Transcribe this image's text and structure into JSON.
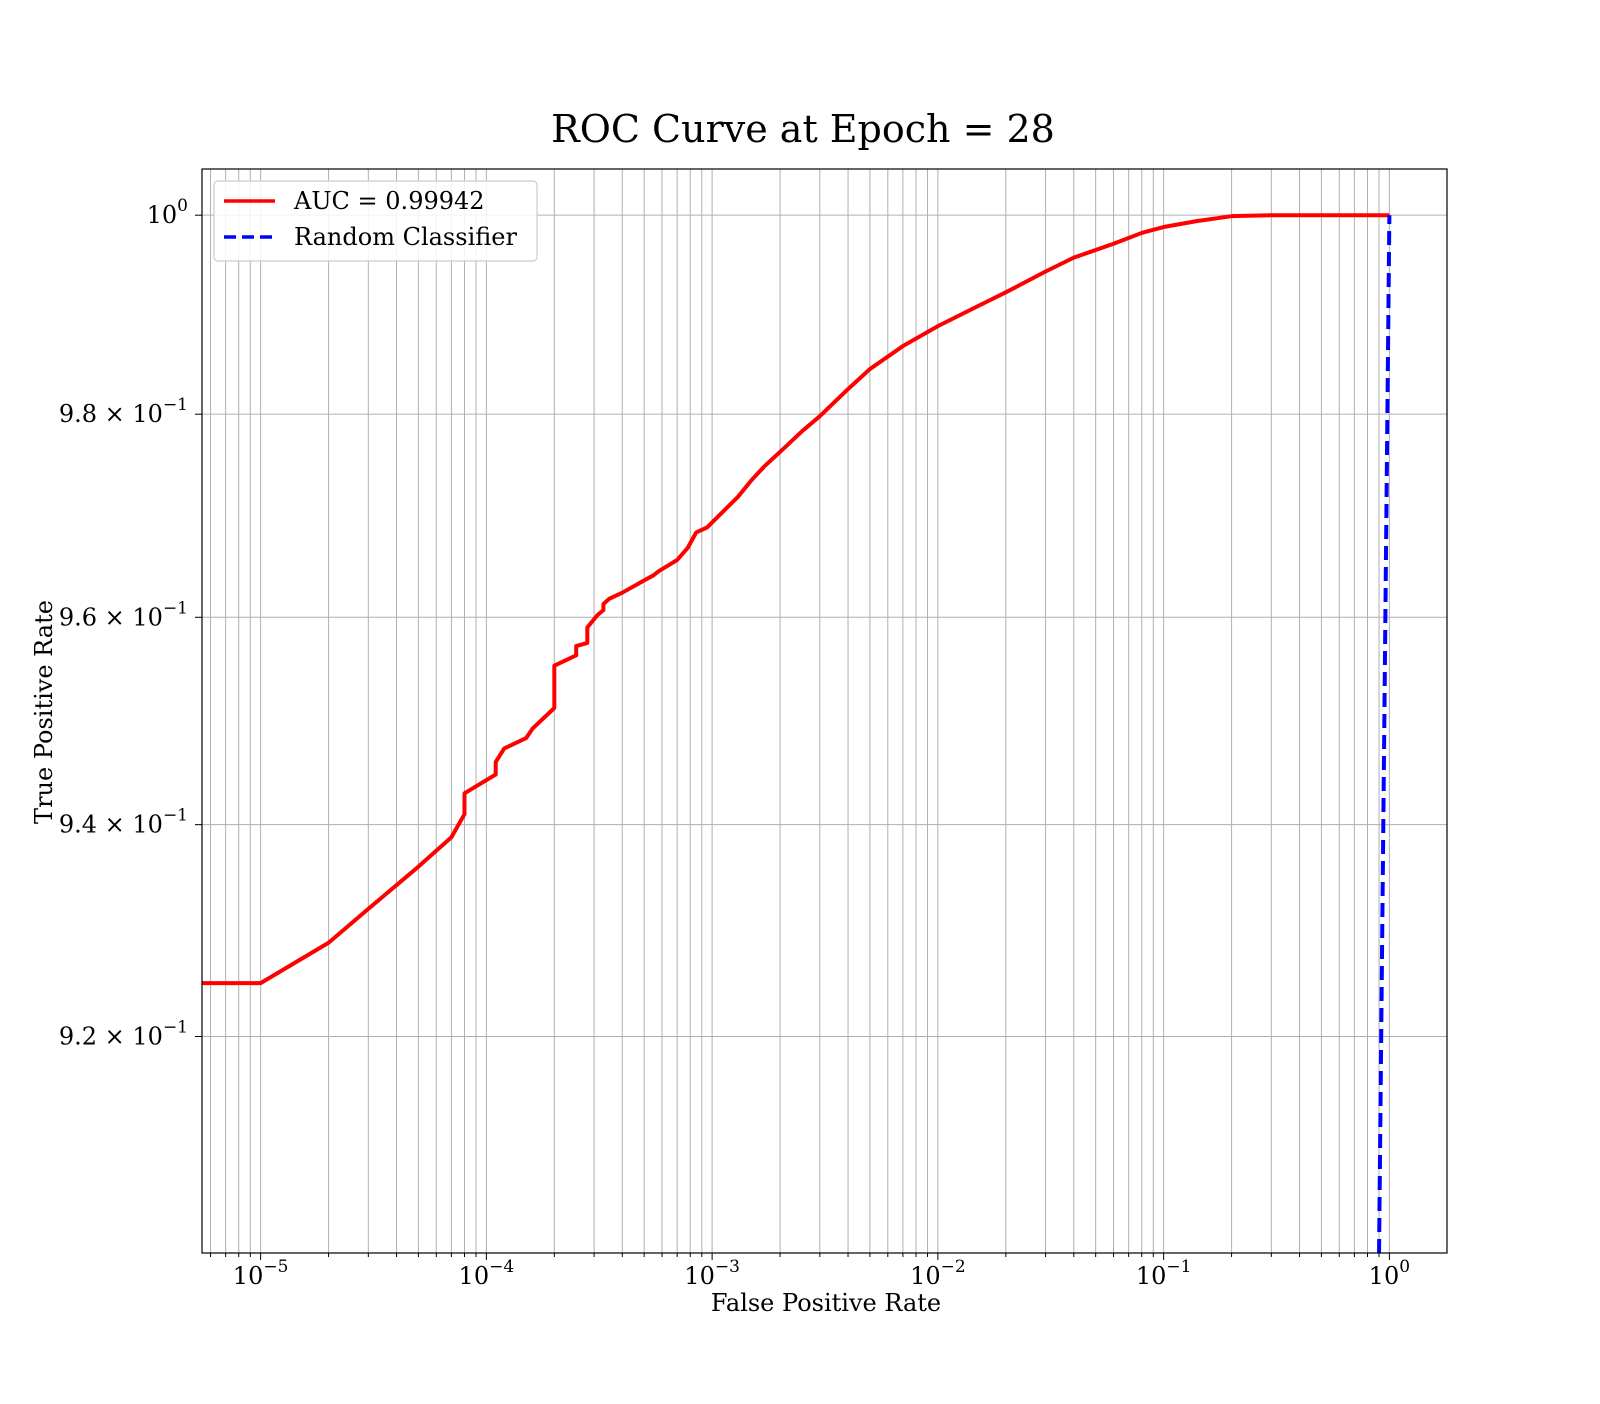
{
  "chart_data": {
    "type": "line",
    "title": "ROC Curve at Epoch = 28",
    "xlabel": "False Positive Rate",
    "ylabel": "True Positive Rate",
    "xscale": "log",
    "yscale": "log",
    "xlim": [
      5.5e-06,
      1.8
    ],
    "ylim": [
      0.9,
      1.0047
    ],
    "grid": true,
    "legend_position": "top-left",
    "x_ticks": [
      {
        "value": 1e-05,
        "base": "10",
        "exp": "−5"
      },
      {
        "value": 0.0001,
        "base": "10",
        "exp": "−4"
      },
      {
        "value": 0.001,
        "base": "10",
        "exp": "−3"
      },
      {
        "value": 0.01,
        "base": "10",
        "exp": "−2"
      },
      {
        "value": 0.1,
        "base": "10",
        "exp": "−1"
      },
      {
        "value": 1,
        "base": "10",
        "exp": "0"
      }
    ],
    "y_ticks": [
      {
        "value": 0.92,
        "base": "9.2 × 10",
        "exp": "−1"
      },
      {
        "value": 0.94,
        "base": "9.4 × 10",
        "exp": "−1"
      },
      {
        "value": 0.96,
        "base": "9.6 × 10",
        "exp": "−1"
      },
      {
        "value": 0.98,
        "base": "9.8 × 10",
        "exp": "−1"
      },
      {
        "value": 1.0,
        "base": "10",
        "exp": "0"
      }
    ],
    "series": [
      {
        "name": "AUC = 0.99942",
        "color": "#ff0000",
        "style": "solid",
        "x": [
          5.5e-06,
          1e-05,
          2e-05,
          3e-05,
          5e-05,
          7e-05,
          8e-05,
          8e-05,
          0.00011,
          0.00011,
          0.00012,
          0.00015,
          0.00016,
          0.0002,
          0.0002,
          0.00025,
          0.00025,
          0.00028,
          0.00028,
          0.00031,
          0.00033,
          0.00033,
          0.00035,
          0.0004,
          0.0005,
          0.00055,
          0.00058,
          0.0007,
          0.00078,
          0.00085,
          0.00095,
          0.0011,
          0.0013,
          0.0015,
          0.0017,
          0.0019,
          0.0021,
          0.0025,
          0.003,
          0.004,
          0.005,
          0.007,
          0.01,
          0.015,
          0.02,
          0.03,
          0.04,
          0.06,
          0.08,
          0.1,
          0.14,
          0.2,
          0.3,
          0.5,
          1.0
        ],
        "y": [
          0.925,
          0.925,
          0.9288,
          0.932,
          0.936,
          0.9388,
          0.941,
          0.943,
          0.9448,
          0.946,
          0.9473,
          0.9483,
          0.9492,
          0.9512,
          0.9553,
          0.9563,
          0.9572,
          0.9575,
          0.959,
          0.9602,
          0.9607,
          0.9613,
          0.9618,
          0.9624,
          0.9636,
          0.9641,
          0.9645,
          0.9656,
          0.9668,
          0.9683,
          0.9688,
          0.9702,
          0.9718,
          0.9735,
          0.9748,
          0.9758,
          0.9767,
          0.9783,
          0.9798,
          0.9825,
          0.9845,
          0.9868,
          0.9888,
          0.9908,
          0.9922,
          0.9943,
          0.9957,
          0.9971,
          0.9982,
          0.9988,
          0.9994,
          0.9999,
          1.0,
          1.0,
          1.0
        ]
      },
      {
        "name": "Random Classifier",
        "color": "#0000ff",
        "style": "dashed",
        "x": [
          0.9,
          1.0
        ],
        "y": [
          0.9,
          1.0
        ]
      }
    ]
  }
}
